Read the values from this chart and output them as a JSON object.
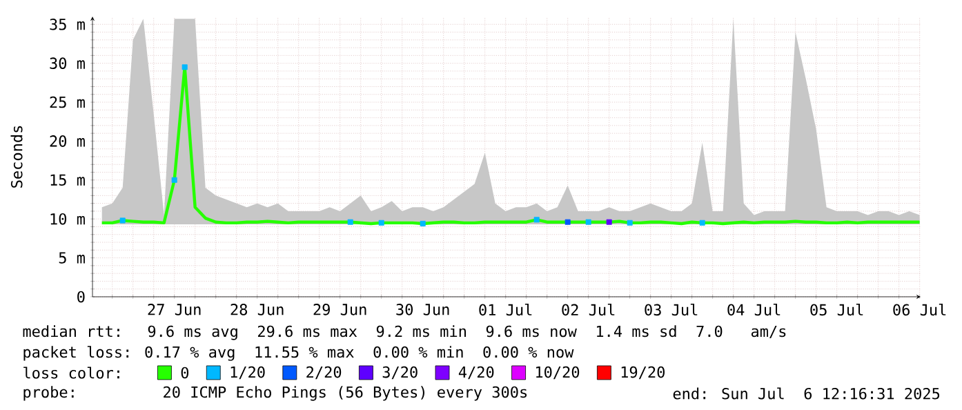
{
  "chart_data": {
    "type": "line",
    "ylabel": "Seconds",
    "legend_title": "loss color:",
    "legend": "bottom",
    "grid": true,
    "line_style": "solid",
    "xlim": [
      "2025-06-26T12:16",
      "2025-07-06T12:16"
    ],
    "xticks": [
      {
        "value": "2025-06-26T18:00",
        "label": null
      },
      {
        "value": "2025-06-27T00:00",
        "label": null
      },
      {
        "value": "2025-06-27T06:00",
        "label": null
      },
      {
        "value": "2025-06-27T12:00",
        "label": "27 Jun"
      },
      {
        "value": "2025-06-27T18:00",
        "label": null
      },
      {
        "value": "2025-06-28T00:00",
        "label": null
      },
      {
        "value": "2025-06-28T06:00",
        "label": null
      },
      {
        "value": "2025-06-28T12:00",
        "label": "28 Jun"
      },
      {
        "value": "2025-06-28T18:00",
        "label": null
      },
      {
        "value": "2025-06-29T00:00",
        "label": null
      },
      {
        "value": "2025-06-29T06:00",
        "label": null
      },
      {
        "value": "2025-06-29T12:00",
        "label": "29 Jun"
      },
      {
        "value": "2025-06-29T18:00",
        "label": null
      },
      {
        "value": "2025-06-30T00:00",
        "label": null
      },
      {
        "value": "2025-06-30T06:00",
        "label": null
      },
      {
        "value": "2025-06-30T12:00",
        "label": "30 Jun"
      },
      {
        "value": "2025-06-30T18:00",
        "label": null
      },
      {
        "value": "2025-07-01T00:00",
        "label": null
      },
      {
        "value": "2025-07-01T06:00",
        "label": null
      },
      {
        "value": "2025-07-01T12:00",
        "label": "01 Jul"
      },
      {
        "value": "2025-07-01T18:00",
        "label": null
      },
      {
        "value": "2025-07-02T00:00",
        "label": null
      },
      {
        "value": "2025-07-02T06:00",
        "label": null
      },
      {
        "value": "2025-07-02T12:00",
        "label": "02 Jul"
      },
      {
        "value": "2025-07-02T18:00",
        "label": null
      },
      {
        "value": "2025-07-03T00:00",
        "label": null
      },
      {
        "value": "2025-07-03T06:00",
        "label": null
      },
      {
        "value": "2025-07-03T12:00",
        "label": "03 Jul"
      },
      {
        "value": "2025-07-03T18:00",
        "label": null
      },
      {
        "value": "2025-07-04T00:00",
        "label": null
      },
      {
        "value": "2025-07-04T06:00",
        "label": null
      },
      {
        "value": "2025-07-04T12:00",
        "label": "04 Jul"
      },
      {
        "value": "2025-07-04T18:00",
        "label": null
      },
      {
        "value": "2025-07-05T00:00",
        "label": null
      },
      {
        "value": "2025-07-05T06:00",
        "label": null
      },
      {
        "value": "2025-07-05T12:00",
        "label": "05 Jul"
      },
      {
        "value": "2025-07-05T18:00",
        "label": null
      },
      {
        "value": "2025-07-06T00:00",
        "label": null
      },
      {
        "value": "2025-07-06T06:00",
        "label": null
      },
      {
        "value": "2025-07-06T12:00",
        "label": "06 Jul"
      }
    ],
    "ylim": [
      0,
      36
    ],
    "yticks": [
      0,
      {
        "value": 1,
        "label": null
      },
      {
        "value": 2,
        "label": null
      },
      {
        "value": 3,
        "label": null
      },
      {
        "value": 4,
        "label": null
      },
      {
        "value": 5,
        "label": "5 m"
      },
      {
        "value": 6,
        "label": null
      },
      {
        "value": 7,
        "label": null
      },
      {
        "value": 8,
        "label": null
      },
      {
        "value": 9,
        "label": null
      },
      {
        "value": 10,
        "label": "10 m"
      },
      {
        "value": 11,
        "label": null
      },
      {
        "value": 12,
        "label": null
      },
      {
        "value": 13,
        "label": null
      },
      {
        "value": 14,
        "label": null
      },
      {
        "value": 15,
        "label": "15 m"
      },
      {
        "value": 16,
        "label": null
      },
      {
        "value": 17,
        "label": null
      },
      {
        "value": 18,
        "label": null
      },
      {
        "value": 19,
        "label": null
      },
      {
        "value": 20,
        "label": "20 m"
      },
      {
        "value": 21,
        "label": null
      },
      {
        "value": 22,
        "label": null
      },
      {
        "value": 23,
        "label": null
      },
      {
        "value": 24,
        "label": null
      },
      {
        "value": 25,
        "label": "25 m"
      },
      {
        "value": 26,
        "label": null
      },
      {
        "value": 27,
        "label": null
      },
      {
        "value": 28,
        "label": null
      },
      {
        "value": 29,
        "label": null
      },
      {
        "value": 30,
        "label": "30 m"
      },
      {
        "value": 31,
        "label": null
      },
      {
        "value": 32,
        "label": null
      },
      {
        "value": 33,
        "label": null
      },
      {
        "value": 34,
        "label": null
      },
      {
        "value": 35,
        "label": "35 m"
      }
    ],
    "x": [
      "2025-06-26T15:00",
      "2025-06-26T18:00",
      "2025-06-26T21:00",
      "2025-06-27T00:00",
      "2025-06-27T03:00",
      "2025-06-27T06:00",
      "2025-06-27T09:00",
      "2025-06-27T12:00",
      "2025-06-27T15:00",
      "2025-06-27T18:00",
      "2025-06-27T21:00",
      "2025-06-28T00:00",
      "2025-06-28T03:00",
      "2025-06-28T06:00",
      "2025-06-28T09:00",
      "2025-06-28T12:00",
      "2025-06-28T15:00",
      "2025-06-28T18:00",
      "2025-06-28T21:00",
      "2025-06-29T00:00",
      "2025-06-29T03:00",
      "2025-06-29T06:00",
      "2025-06-29T09:00",
      "2025-06-29T12:00",
      "2025-06-29T15:00",
      "2025-06-29T18:00",
      "2025-06-29T21:00",
      "2025-06-30T00:00",
      "2025-06-30T03:00",
      "2025-06-30T06:00",
      "2025-06-30T09:00",
      "2025-06-30T12:00",
      "2025-06-30T15:00",
      "2025-06-30T18:00",
      "2025-06-30T21:00",
      "2025-07-01T00:00",
      "2025-07-01T03:00",
      "2025-07-01T06:00",
      "2025-07-01T09:00",
      "2025-07-01T12:00",
      "2025-07-01T15:00",
      "2025-07-01T18:00",
      "2025-07-01T21:00",
      "2025-07-02T00:00",
      "2025-07-02T03:00",
      "2025-07-02T06:00",
      "2025-07-02T09:00",
      "2025-07-02T12:00",
      "2025-07-02T15:00",
      "2025-07-02T18:00",
      "2025-07-02T21:00",
      "2025-07-03T00:00",
      "2025-07-03T03:00",
      "2025-07-03T06:00",
      "2025-07-03T09:00",
      "2025-07-03T12:00",
      "2025-07-03T15:00",
      "2025-07-03T18:00",
      "2025-07-03T21:00",
      "2025-07-04T00:00",
      "2025-07-04T03:00",
      "2025-07-04T06:00",
      "2025-07-04T09:00",
      "2025-07-04T12:00",
      "2025-07-04T15:00",
      "2025-07-04T18:00",
      "2025-07-04T21:00",
      "2025-07-05T00:00",
      "2025-07-05T03:00",
      "2025-07-05T06:00",
      "2025-07-05T09:00",
      "2025-07-05T12:00",
      "2025-07-05T15:00",
      "2025-07-05T18:00",
      "2025-07-05T21:00",
      "2025-07-06T00:00",
      "2025-07-06T03:00",
      "2025-07-06T06:00",
      "2025-07-06T09:00",
      "2025-07-06T12:00"
    ],
    "series": [
      {
        "name": "0",
        "color": "#26ff00",
        "values": [
          9.5,
          9.5,
          9.8,
          9.7,
          9.6,
          9.6,
          9.5,
          15,
          29.5,
          11.5,
          10.1,
          9.6,
          9.5,
          9.5,
          9.6,
          9.6,
          9.7,
          9.6,
          9.5,
          9.6,
          9.6,
          9.6,
          9.6,
          9.6,
          9.6,
          9.5,
          9.4,
          9.5,
          9.5,
          9.5,
          9.5,
          9.4,
          9.5,
          9.6,
          9.6,
          9.5,
          9.5,
          9.6,
          9.6,
          9.6,
          9.6,
          9.6,
          9.9,
          9.6,
          9.6,
          9.6,
          9.6,
          9.6,
          9.6,
          9.6,
          9.7,
          9.5,
          9.5,
          9.6,
          9.6,
          9.5,
          9.4,
          9.6,
          9.5,
          9.5,
          9.4,
          9.5,
          9.6,
          9.5,
          9.6,
          9.6,
          9.6,
          9.7,
          9.6,
          9.6,
          9.5,
          9.5,
          9.6,
          9.5,
          9.6,
          9.6,
          9.6,
          9.6,
          9.6,
          9.6
        ],
        "lower": [
          9.3,
          9.3,
          9.3,
          9.3,
          9.3,
          9.3,
          9.3,
          9.3,
          9.3,
          9.3,
          9.3,
          9.3,
          9.3,
          9.3,
          9.3,
          9.3,
          9.3,
          9.3,
          9.3,
          9.3,
          9.3,
          9.3,
          9.3,
          9.3,
          9.3,
          9.3,
          9.3,
          9.3,
          9.3,
          9.3,
          9.3,
          9.3,
          9.3,
          9.3,
          9.3,
          9.3,
          9.3,
          9.3,
          9.3,
          9.3,
          9.3,
          9.3,
          9.3,
          9.3,
          9.3,
          9.3,
          9.3,
          9.3,
          9.3,
          9.3,
          9.3,
          9.3,
          9.3,
          9.3,
          9.3,
          9.3,
          9.3,
          9.3,
          9.3,
          9.3,
          9.3,
          9.3,
          9.3,
          9.3,
          9.3,
          9.3,
          9.3,
          9.3,
          9.3,
          9.3,
          9.3,
          9.3,
          9.3,
          9.3,
          9.3,
          9.3,
          9.3,
          9.3,
          9.3,
          9.3
        ],
        "upper": [
          11.5,
          12,
          14,
          33,
          35.7,
          23.5,
          10.5,
          35.7,
          35.7,
          35.7,
          14,
          13,
          12.5,
          12,
          11.5,
          12,
          11.5,
          12,
          11,
          11,
          11,
          11,
          11.5,
          11,
          12,
          13,
          11,
          11.5,
          12.3,
          11,
          11.5,
          11.5,
          11,
          11.5,
          12.5,
          13.5,
          14.5,
          18.5,
          12,
          11,
          11.5,
          11.5,
          12,
          11,
          11.5,
          14.3,
          11,
          11,
          11,
          11.5,
          11,
          11,
          11.5,
          12,
          11.5,
          11,
          11,
          12,
          19.8,
          11,
          11,
          35.7,
          12,
          10.5,
          11,
          11,
          11,
          34,
          28,
          21.5,
          11.5,
          11,
          11,
          11,
          10.5,
          11,
          11,
          10.5,
          11,
          10.5
        ]
      },
      {
        "name": "1/20",
        "color": "#00b8ff",
        "type": "scatter",
        "marker": "square",
        "x": [
          "2025-06-26T21:00",
          "2025-06-27T12:00",
          "2025-06-27T15:00",
          "2025-06-29T15:00",
          "2025-06-30T00:00",
          "2025-06-30T12:00",
          "2025-07-01T21:00",
          "2025-07-02T12:00",
          "2025-07-03T00:00",
          "2025-07-03T21:00"
        ],
        "values": [
          9.8,
          15,
          29.5,
          9.6,
          9.5,
          9.4,
          9.9,
          9.6,
          9.5,
          9.5
        ]
      },
      {
        "name": "2/20",
        "color": "#0059ff",
        "type": "scatter",
        "marker": "square",
        "x": [
          "2025-07-02T06:00"
        ],
        "values": [
          9.6
        ]
      },
      {
        "name": "3/20",
        "color": "#5e00ff",
        "type": "scatter",
        "marker": "square",
        "x": [
          "2025-07-02T18:00"
        ],
        "values": [
          9.6
        ]
      },
      {
        "name": "4/20",
        "color": "#7e00ff",
        "type": "scatter",
        "marker": "square",
        "values": [
          null,
          null,
          null,
          null,
          null,
          null,
          null,
          null,
          null,
          null,
          null,
          null,
          null,
          null,
          null,
          null,
          null,
          null,
          null,
          null,
          null,
          null,
          null,
          null,
          null,
          null,
          null,
          null,
          null,
          null,
          null,
          null,
          null,
          null,
          null,
          null,
          null,
          null,
          null,
          null,
          null,
          null,
          null,
          null,
          null,
          null,
          null,
          null,
          null,
          null,
          null,
          null,
          null,
          null,
          null,
          null,
          null,
          null,
          null,
          null,
          null,
          null,
          null,
          null,
          null,
          null,
          null,
          null,
          null,
          null,
          null,
          null,
          null,
          null,
          null,
          null,
          null,
          null,
          null,
          null
        ]
      },
      {
        "name": "10/20",
        "color": "#dd00ff",
        "type": "scatter",
        "marker": "square",
        "values": [
          null,
          null,
          null,
          null,
          null,
          null,
          null,
          null,
          null,
          null,
          null,
          null,
          null,
          null,
          null,
          null,
          null,
          null,
          null,
          null,
          null,
          null,
          null,
          null,
          null,
          null,
          null,
          null,
          null,
          null,
          null,
          null,
          null,
          null,
          null,
          null,
          null,
          null,
          null,
          null,
          null,
          null,
          null,
          null,
          null,
          null,
          null,
          null,
          null,
          null,
          null,
          null,
          null,
          null,
          null,
          null,
          null,
          null,
          null,
          null,
          null,
          null,
          null,
          null,
          null,
          null,
          null,
          null,
          null,
          null,
          null,
          null,
          null,
          null,
          null,
          null,
          null,
          null,
          null,
          null
        ]
      },
      {
        "name": "19/20",
        "color": "#ff0000",
        "type": "scatter",
        "marker": "square",
        "values": [
          null,
          null,
          null,
          null,
          null,
          null,
          null,
          null,
          null,
          null,
          null,
          null,
          null,
          null,
          null,
          null,
          null,
          null,
          null,
          null,
          null,
          null,
          null,
          null,
          null,
          null,
          null,
          null,
          null,
          null,
          null,
          null,
          null,
          null,
          null,
          null,
          null,
          null,
          null,
          null,
          null,
          null,
          null,
          null,
          null,
          null,
          null,
          null,
          null,
          null,
          null,
          null,
          null,
          null,
          null,
          null,
          null,
          null,
          null,
          null,
          null,
          null,
          null,
          null,
          null,
          null,
          null,
          null,
          null,
          null,
          null,
          null,
          null,
          null,
          null,
          null,
          null,
          null,
          null,
          null
        ]
      }
    ],
    "annotations": [
      "median rtt:  9.6 ms avg  29.6 ms max  9.2 ms min  9.6 ms now  1.4 ms sd  7.0   am/s",
      "packet loss: 0.17 % avg  11.55 % max  0.00 % min  0.00 % now",
      "probe:       20 ICMP Echo Pings (56 Bytes) every 300s",
      "end: Sun Jul  6 12:16:31 2025"
    ]
  }
}
